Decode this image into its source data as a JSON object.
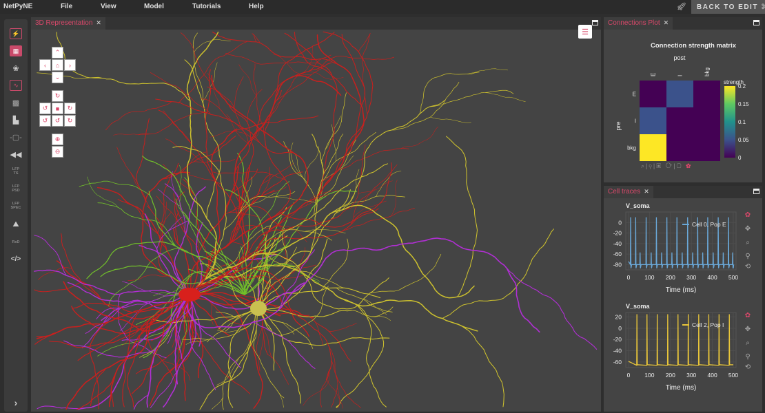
{
  "menu": {
    "brand": "NetPyNE",
    "items": [
      "File",
      "View",
      "Model",
      "Tutorials",
      "Help"
    ],
    "back_to_edit": "BACK TO EDIT"
  },
  "sidebar": {
    "items": [
      {
        "icon": "network-icon"
      },
      {
        "icon": "raster-icon"
      },
      {
        "icon": "cells-icon"
      },
      {
        "icon": "trace-icon"
      },
      {
        "icon": "matrix-icon"
      },
      {
        "icon": "histogram-icon"
      },
      {
        "icon": "connection-icon"
      },
      {
        "icon": "rate-icon"
      },
      {
        "label": "LFP",
        "sub": "TS"
      },
      {
        "label": "LFP",
        "sub": "PSD"
      },
      {
        "label": "LFP",
        "sub": "SPEC"
      },
      {
        "icon": "mountain-icon"
      },
      {
        "label": "RxD"
      },
      {
        "icon": "code-icon"
      }
    ],
    "expand_icon": "chevron-right-icon"
  },
  "main": {
    "tab": "3D Representation",
    "colors": {
      "E_red": "#c8201e",
      "green": "#72c02a",
      "yellow": "#cdc12e",
      "magenta": "#b12fd4"
    }
  },
  "connections": {
    "tab": "Connections Plot"
  },
  "traces": {
    "tab": "Cell traces"
  },
  "accent": "#d9486a",
  "chart_data": [
    {
      "type": "heatmap",
      "title": "Connection strength matrix",
      "xlabel": "post",
      "ylabel": "pre",
      "x_categories": [
        "E",
        "I",
        "bkg"
      ],
      "y_categories": [
        "E",
        "I",
        "bkg"
      ],
      "values": [
        [
          0,
          0.05,
          0
        ],
        [
          0.05,
          0,
          0
        ],
        [
          0.2,
          0,
          0
        ]
      ],
      "colorbar": {
        "label": "strength",
        "range": [
          0,
          0.2
        ],
        "ticks": [
          "0",
          "0.05",
          "0.1",
          "0.15",
          "0.2"
        ],
        "colormap": "viridis"
      }
    },
    {
      "type": "line",
      "title": "V_soma",
      "xlabel": "Time (ms)",
      "xlim": [
        0,
        500
      ],
      "ylim": [
        -90,
        20
      ],
      "xticks": [
        "0",
        "100",
        "200",
        "300",
        "400",
        "500"
      ],
      "yticks": [
        "0",
        "-20",
        "-40",
        "-60",
        "-80"
      ],
      "series": [
        {
          "name": "Cell 0, Pop E",
          "color": "#6aa8d8",
          "spike_times": [
            10,
            34,
            84,
            133,
            183,
            231,
            282,
            330,
            378,
            428,
            477
          ],
          "small_spike_times": [
            55,
            108,
            158,
            207,
            256,
            306,
            354,
            404,
            452,
            497
          ],
          "peak": 10,
          "small_peak": -57,
          "rest": -80,
          "trough": -87
        }
      ],
      "legend": "top-right"
    },
    {
      "type": "line",
      "title": "V_soma",
      "xlabel": "Time (ms)",
      "xlim": [
        0,
        500
      ],
      "ylim": [
        -70,
        28
      ],
      "xticks": [
        "0",
        "100",
        "200",
        "300",
        "400",
        "500"
      ],
      "yticks": [
        "20",
        "0",
        "-20",
        "-40",
        "-60"
      ],
      "series": [
        {
          "name": "Cell 2, Pop I",
          "color": "#e8c53a",
          "spike_times": [
            40,
            88,
            137,
            187,
            236,
            285,
            335,
            383,
            432,
            481
          ],
          "peak": 25,
          "rest": -65
        }
      ],
      "legend": "top-right"
    }
  ]
}
